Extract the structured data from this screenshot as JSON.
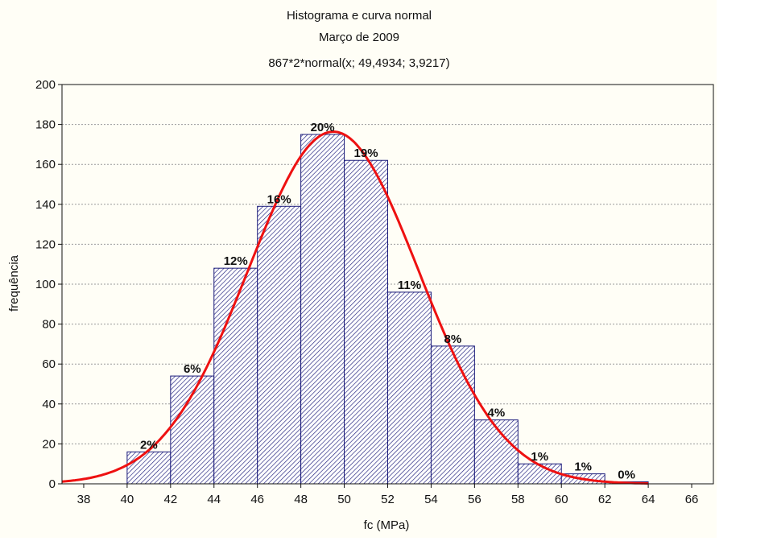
{
  "chart_data": {
    "type": "bar",
    "title": "Histograma e curva normal",
    "subtitle": "Março de 2009",
    "curve_label": "867*2*normal(x; 49,4934; 3,9217)",
    "xlabel": "fc (MPa)",
    "ylabel": "frequência",
    "xlim": [
      37,
      67
    ],
    "ylim": [
      0,
      200
    ],
    "x_ticks": [
      "38",
      "40",
      "42",
      "44",
      "46",
      "48",
      "50",
      "52",
      "54",
      "56",
      "58",
      "60",
      "62",
      "64",
      "66"
    ],
    "y_ticks": [
      "0",
      "20",
      "40",
      "60",
      "80",
      "100",
      "120",
      "140",
      "160",
      "180",
      "200"
    ],
    "grid": true,
    "bins": [
      {
        "from": 40,
        "to": 42,
        "value": 16,
        "label": "2%"
      },
      {
        "from": 42,
        "to": 44,
        "value": 54,
        "label": "6%"
      },
      {
        "from": 44,
        "to": 46,
        "value": 108,
        "label": "12%"
      },
      {
        "from": 46,
        "to": 48,
        "value": 139,
        "label": "16%"
      },
      {
        "from": 48,
        "to": 50,
        "value": 175,
        "label": "20%"
      },
      {
        "from": 50,
        "to": 52,
        "value": 162,
        "label": "19%"
      },
      {
        "from": 52,
        "to": 54,
        "value": 96,
        "label": "11%"
      },
      {
        "from": 54,
        "to": 56,
        "value": 69,
        "label": "8%"
      },
      {
        "from": 56,
        "to": 58,
        "value": 32,
        "label": "4%"
      },
      {
        "from": 58,
        "to": 60,
        "value": 10,
        "label": "1%"
      },
      {
        "from": 60,
        "to": 62,
        "value": 5,
        "label": "1%"
      },
      {
        "from": 62,
        "to": 64,
        "value": 1,
        "label": "0%"
      }
    ],
    "normal_curve": {
      "n": 867,
      "bin_width": 2,
      "mean": 49.4934,
      "sd": 3.9217
    },
    "colors": {
      "bar_stroke": "#1a1a7a",
      "hatch": "#1a1a7a",
      "curve": "#ee1111",
      "grid": "#9a9a9a"
    }
  }
}
